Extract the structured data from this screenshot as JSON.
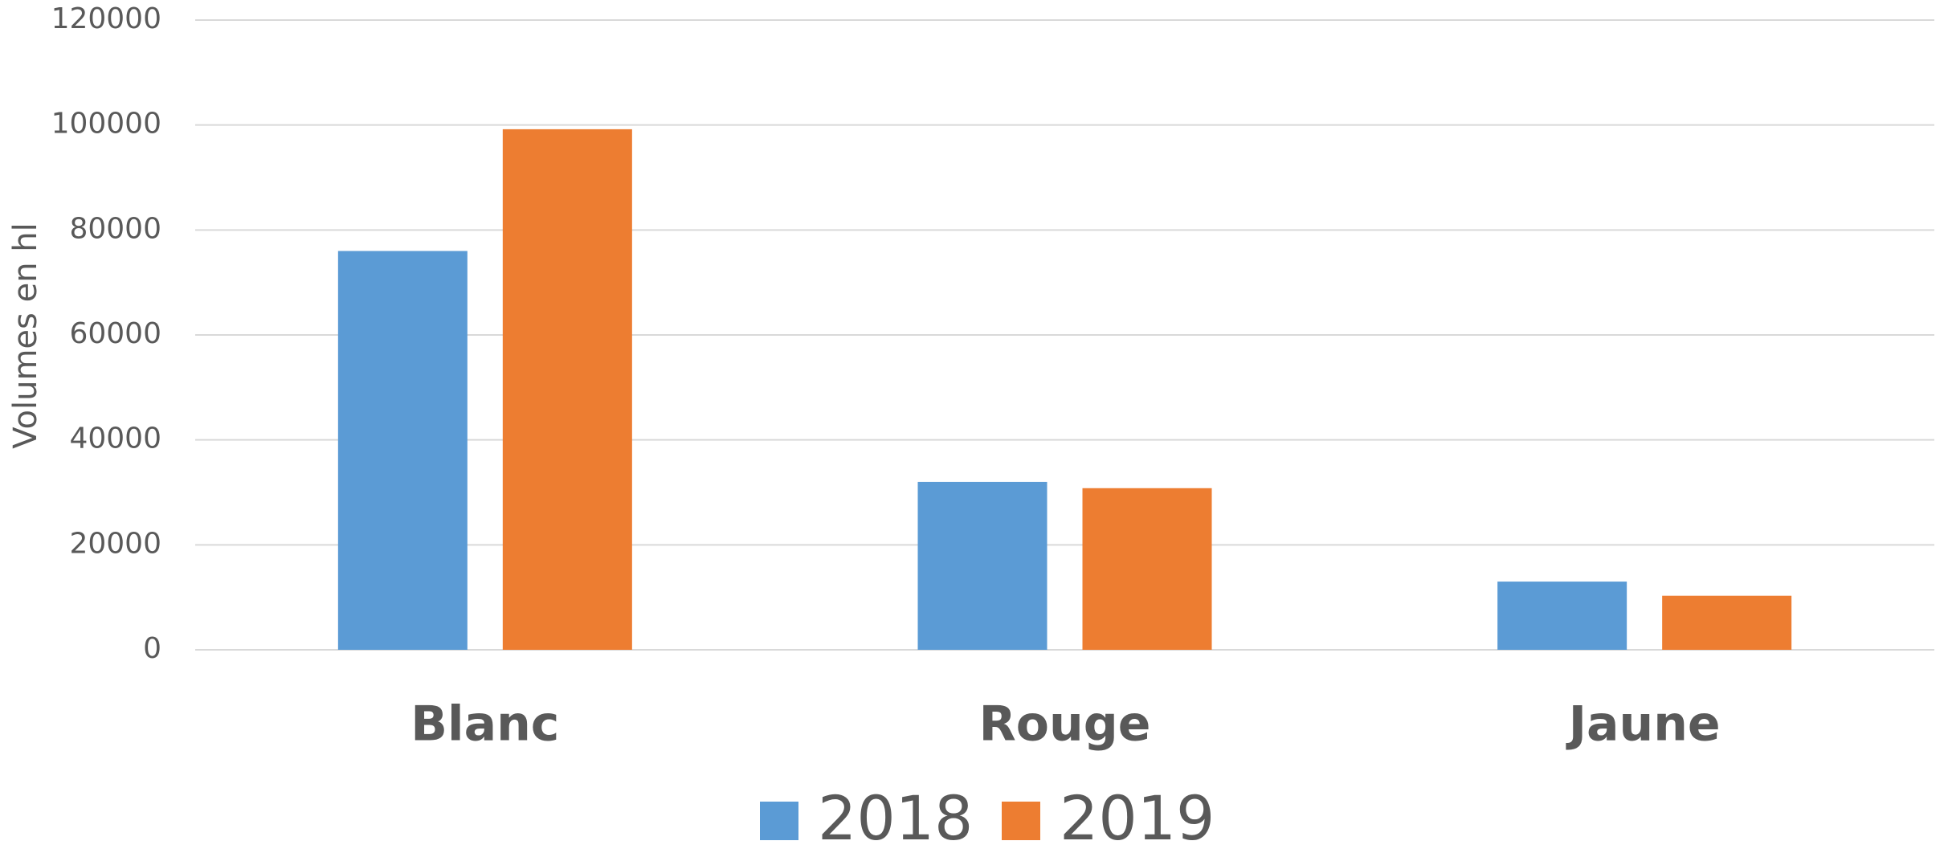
{
  "chart_data": {
    "type": "bar",
    "y_label": "Volumes en hl",
    "categories": [
      "Blanc",
      "Rouge",
      "Jaune"
    ],
    "series": [
      {
        "name": "2018",
        "color": "#5b9bd5",
        "values": [
          76000,
          32000,
          13000
        ]
      },
      {
        "name": "2019",
        "color": "#ed7d31",
        "values": [
          99200,
          30800,
          10300
        ]
      }
    ],
    "ylim": [
      0,
      120000
    ],
    "yticks": [
      0,
      20000,
      40000,
      60000,
      80000,
      100000,
      120000
    ],
    "grid": true,
    "legend": "bottom"
  }
}
